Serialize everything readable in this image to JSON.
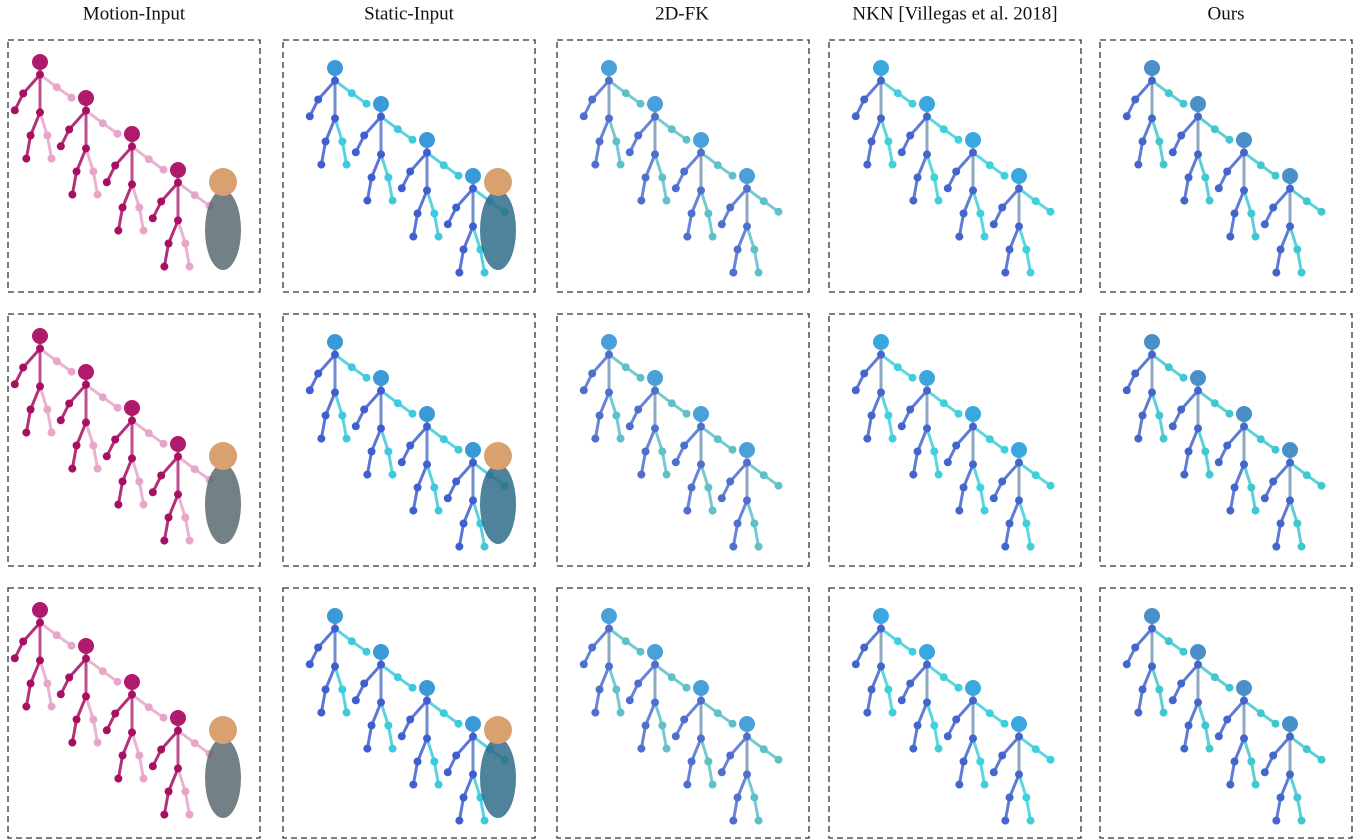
{
  "header": {
    "columns": [
      "Motion-Input",
      "Static-Input",
      "2D-FK",
      "NKN [Villegas et al. 2018]",
      "Ours"
    ]
  }
}
